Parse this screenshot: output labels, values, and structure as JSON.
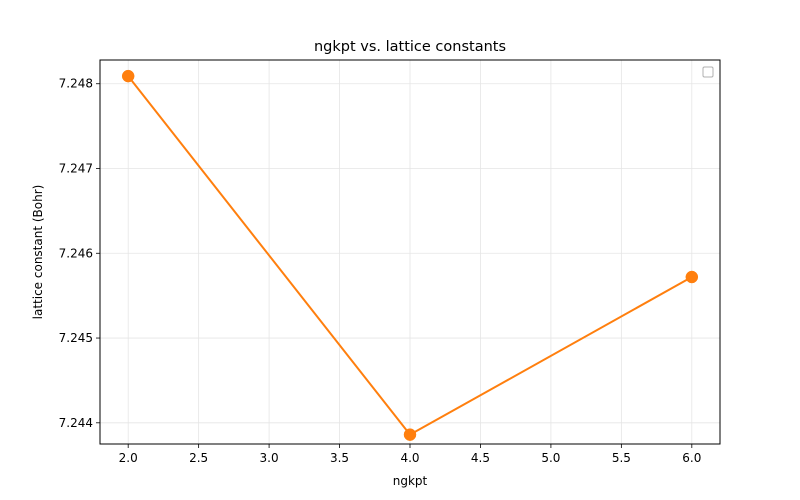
{
  "chart_data": {
    "type": "line",
    "title": "ngkpt vs. lattice constants",
    "xlabel": "ngkpt",
    "ylabel": "lattice constant (Bohr)",
    "x": [
      2.0,
      4.0,
      6.0
    ],
    "series": [
      {
        "values": [
          7.24809,
          7.24386,
          7.24572
        ],
        "color": "#ff7f0e",
        "marker": "circle"
      }
    ],
    "xlim": [
      1.8,
      6.2
    ],
    "ylim": [
      7.24375,
      7.24828
    ],
    "xticks": [
      2.0,
      2.5,
      3.0,
      3.5,
      4.0,
      4.5,
      5.0,
      5.5,
      6.0
    ],
    "xtick_labels": [
      "2.0",
      "2.5",
      "3.0",
      "3.5",
      "4.0",
      "4.5",
      "5.0",
      "5.5",
      "6.0"
    ],
    "yticks": [
      7.244,
      7.245,
      7.246,
      7.247,
      7.248
    ],
    "ytick_labels": [
      "7.244",
      "7.245",
      "7.246",
      "7.247",
      "7.248"
    ],
    "grid": true,
    "legend": "top-right, empty"
  }
}
